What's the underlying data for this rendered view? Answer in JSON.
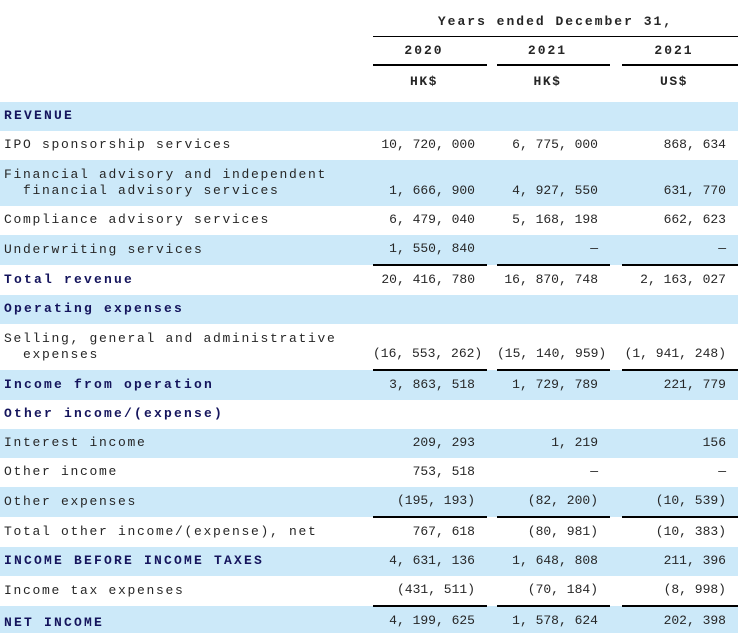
{
  "header": {
    "period_title": "Years ended December 31,",
    "columns": [
      {
        "year": "2020",
        "currency": "HK$"
      },
      {
        "year": "2021",
        "currency": "HK$"
      },
      {
        "year": "2021",
        "currency": "US$"
      }
    ]
  },
  "rows": [
    {
      "label": "REVENUE",
      "bold": true,
      "bg": "blue",
      "underline": "none",
      "values": [
        "",
        "",
        ""
      ]
    },
    {
      "label": "IPO sponsorship services",
      "bold": false,
      "bg": "white",
      "underline": "none",
      "values": [
        "10, 720, 000",
        "6, 775, 000",
        "868, 634"
      ]
    },
    {
      "label": "Financial advisory and independent",
      "label2": "financial advisory services",
      "bold": false,
      "bg": "blue",
      "underline": "none",
      "values": [
        "1, 666, 900",
        "4, 927, 550",
        "631, 770"
      ]
    },
    {
      "label": "Compliance advisory services",
      "bold": false,
      "bg": "white",
      "underline": "none",
      "values": [
        "6, 479, 040",
        "5, 168, 198",
        "662, 623"
      ]
    },
    {
      "label": "Underwriting services",
      "bold": false,
      "bg": "blue",
      "underline": "single",
      "values": [
        "1, 550, 840",
        "—",
        "—"
      ]
    },
    {
      "label": "Total revenue",
      "bold": true,
      "bg": "white",
      "underline": "none",
      "values": [
        "20, 416, 780",
        "16, 870, 748",
        "2, 163, 027"
      ]
    },
    {
      "label": "Operating expenses",
      "bold": true,
      "bg": "blue",
      "underline": "none",
      "values": [
        "",
        "",
        ""
      ]
    },
    {
      "label": "Selling, general and administrative",
      "label2": "expenses",
      "bold": false,
      "bg": "white",
      "underline": "single",
      "values": [
        "(16, 553, 262)",
        "(15, 140, 959)",
        "(1, 941, 248)"
      ]
    },
    {
      "label": "Income from operation",
      "bold": true,
      "bg": "blue",
      "underline": "none",
      "values": [
        "3, 863, 518",
        "1, 729, 789",
        "221, 779"
      ]
    },
    {
      "label": "Other income/(expense)",
      "bold": true,
      "bg": "white",
      "underline": "none",
      "values": [
        "",
        "",
        ""
      ]
    },
    {
      "label": "Interest income",
      "bold": false,
      "bg": "blue",
      "underline": "none",
      "values": [
        "209, 293",
        "1, 219",
        "156"
      ]
    },
    {
      "label": "Other income",
      "bold": false,
      "bg": "white",
      "underline": "none",
      "values": [
        "753, 518",
        "—",
        "—"
      ]
    },
    {
      "label": "Other expenses",
      "bold": false,
      "bg": "blue",
      "underline": "single",
      "values": [
        "(195, 193)",
        "(82, 200)",
        "(10, 539)"
      ]
    },
    {
      "label": "Total other income/(expense), net",
      "bold": false,
      "bg": "white",
      "underline": "none",
      "values": [
        "767, 618",
        "(80, 981)",
        "(10, 383)"
      ]
    },
    {
      "label": "INCOME BEFORE INCOME TAXES",
      "bold": true,
      "bg": "blue",
      "underline": "none",
      "values": [
        "4, 631, 136",
        "1, 648, 808",
        "211, 396"
      ]
    },
    {
      "label": "Income tax expenses",
      "bold": false,
      "bg": "white",
      "underline": "single",
      "values": [
        "(431, 511)",
        "(70, 184)",
        "(8, 998)"
      ]
    },
    {
      "label": "NET INCOME",
      "bold": true,
      "bg": "blue",
      "underline": "double",
      "values": [
        "4, 199, 625",
        "1, 578, 624",
        "202, 398"
      ]
    }
  ],
  "colors": {
    "row_stripe_blue": "#cce9f9",
    "bold_label_navy": "#14145c",
    "body_text": "#262626",
    "rule_black": "#000000"
  }
}
